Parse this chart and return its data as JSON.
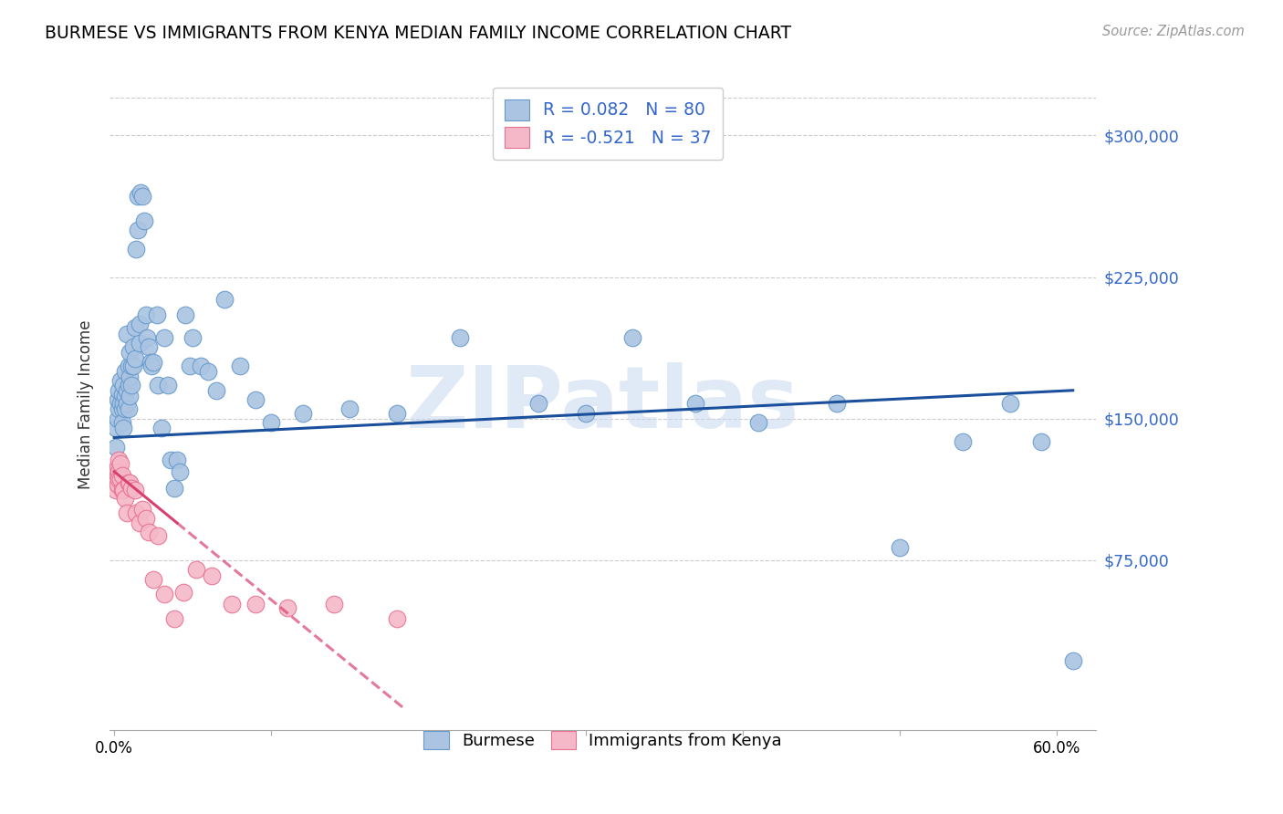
{
  "title": "BURMESE VS IMMIGRANTS FROM KENYA MEDIAN FAMILY INCOME CORRELATION CHART",
  "source": "Source: ZipAtlas.com",
  "ylabel": "Median Family Income",
  "yticks": [
    75000,
    150000,
    225000,
    300000
  ],
  "ytick_labels": [
    "$75,000",
    "$150,000",
    "$225,000",
    "$300,000"
  ],
  "xlim": [
    -0.003,
    0.625
  ],
  "ylim": [
    -15000,
    330000
  ],
  "burmese_color": "#aac4e2",
  "burmese_edge_color": "#6699cc",
  "burmese_line_color": "#1a4f9c",
  "kenya_color": "#f5b8c8",
  "kenya_edge_color": "#e87090",
  "kenya_line_color": "#d94070",
  "legend_color": "#3366cc",
  "watermark": "ZIPatlas",
  "R_burmese": 0.082,
  "N_burmese": 80,
  "R_kenya": -0.521,
  "N_kenya": 37,
  "burmese_x": [
    0.001,
    0.001,
    0.002,
    0.002,
    0.003,
    0.003,
    0.004,
    0.004,
    0.005,
    0.005,
    0.005,
    0.006,
    0.006,
    0.006,
    0.007,
    0.007,
    0.007,
    0.008,
    0.008,
    0.008,
    0.009,
    0.009,
    0.009,
    0.01,
    0.01,
    0.01,
    0.011,
    0.011,
    0.012,
    0.012,
    0.013,
    0.013,
    0.014,
    0.015,
    0.015,
    0.016,
    0.016,
    0.017,
    0.018,
    0.019,
    0.02,
    0.021,
    0.022,
    0.023,
    0.024,
    0.025,
    0.027,
    0.028,
    0.03,
    0.032,
    0.034,
    0.036,
    0.038,
    0.04,
    0.042,
    0.045,
    0.048,
    0.05,
    0.055,
    0.06,
    0.065,
    0.07,
    0.08,
    0.09,
    0.1,
    0.12,
    0.15,
    0.18,
    0.22,
    0.27,
    0.3,
    0.33,
    0.37,
    0.41,
    0.46,
    0.5,
    0.54,
    0.57,
    0.59,
    0.61
  ],
  "burmese_y": [
    145000,
    135000,
    160000,
    150000,
    165000,
    155000,
    170000,
    158000,
    163000,
    155000,
    148000,
    168000,
    158000,
    145000,
    175000,
    162000,
    155000,
    195000,
    165000,
    158000,
    178000,
    168000,
    155000,
    185000,
    172000,
    162000,
    178000,
    168000,
    188000,
    178000,
    198000,
    182000,
    240000,
    250000,
    268000,
    200000,
    190000,
    270000,
    268000,
    255000,
    205000,
    193000,
    188000,
    180000,
    178000,
    180000,
    205000,
    168000,
    145000,
    193000,
    168000,
    128000,
    113000,
    128000,
    122000,
    205000,
    178000,
    193000,
    178000,
    175000,
    165000,
    213000,
    178000,
    160000,
    148000,
    153000,
    155000,
    153000,
    193000,
    158000,
    153000,
    193000,
    158000,
    148000,
    158000,
    82000,
    138000,
    158000,
    138000,
    22000
  ],
  "kenya_x": [
    0.001,
    0.001,
    0.001,
    0.002,
    0.002,
    0.002,
    0.003,
    0.003,
    0.003,
    0.004,
    0.004,
    0.005,
    0.005,
    0.006,
    0.007,
    0.008,
    0.009,
    0.01,
    0.011,
    0.013,
    0.014,
    0.016,
    0.018,
    0.02,
    0.022,
    0.025,
    0.028,
    0.032,
    0.038,
    0.044,
    0.052,
    0.062,
    0.075,
    0.09,
    0.11,
    0.14,
    0.18
  ],
  "kenya_y": [
    122000,
    118000,
    112000,
    125000,
    120000,
    115000,
    128000,
    122000,
    118000,
    126000,
    118000,
    120000,
    112000,
    112000,
    108000,
    100000,
    116000,
    116000,
    113000,
    112000,
    100000,
    95000,
    102000,
    97000,
    90000,
    65000,
    88000,
    57000,
    44000,
    58000,
    70000,
    67000,
    52000,
    52000,
    50000,
    52000,
    44000
  ]
}
